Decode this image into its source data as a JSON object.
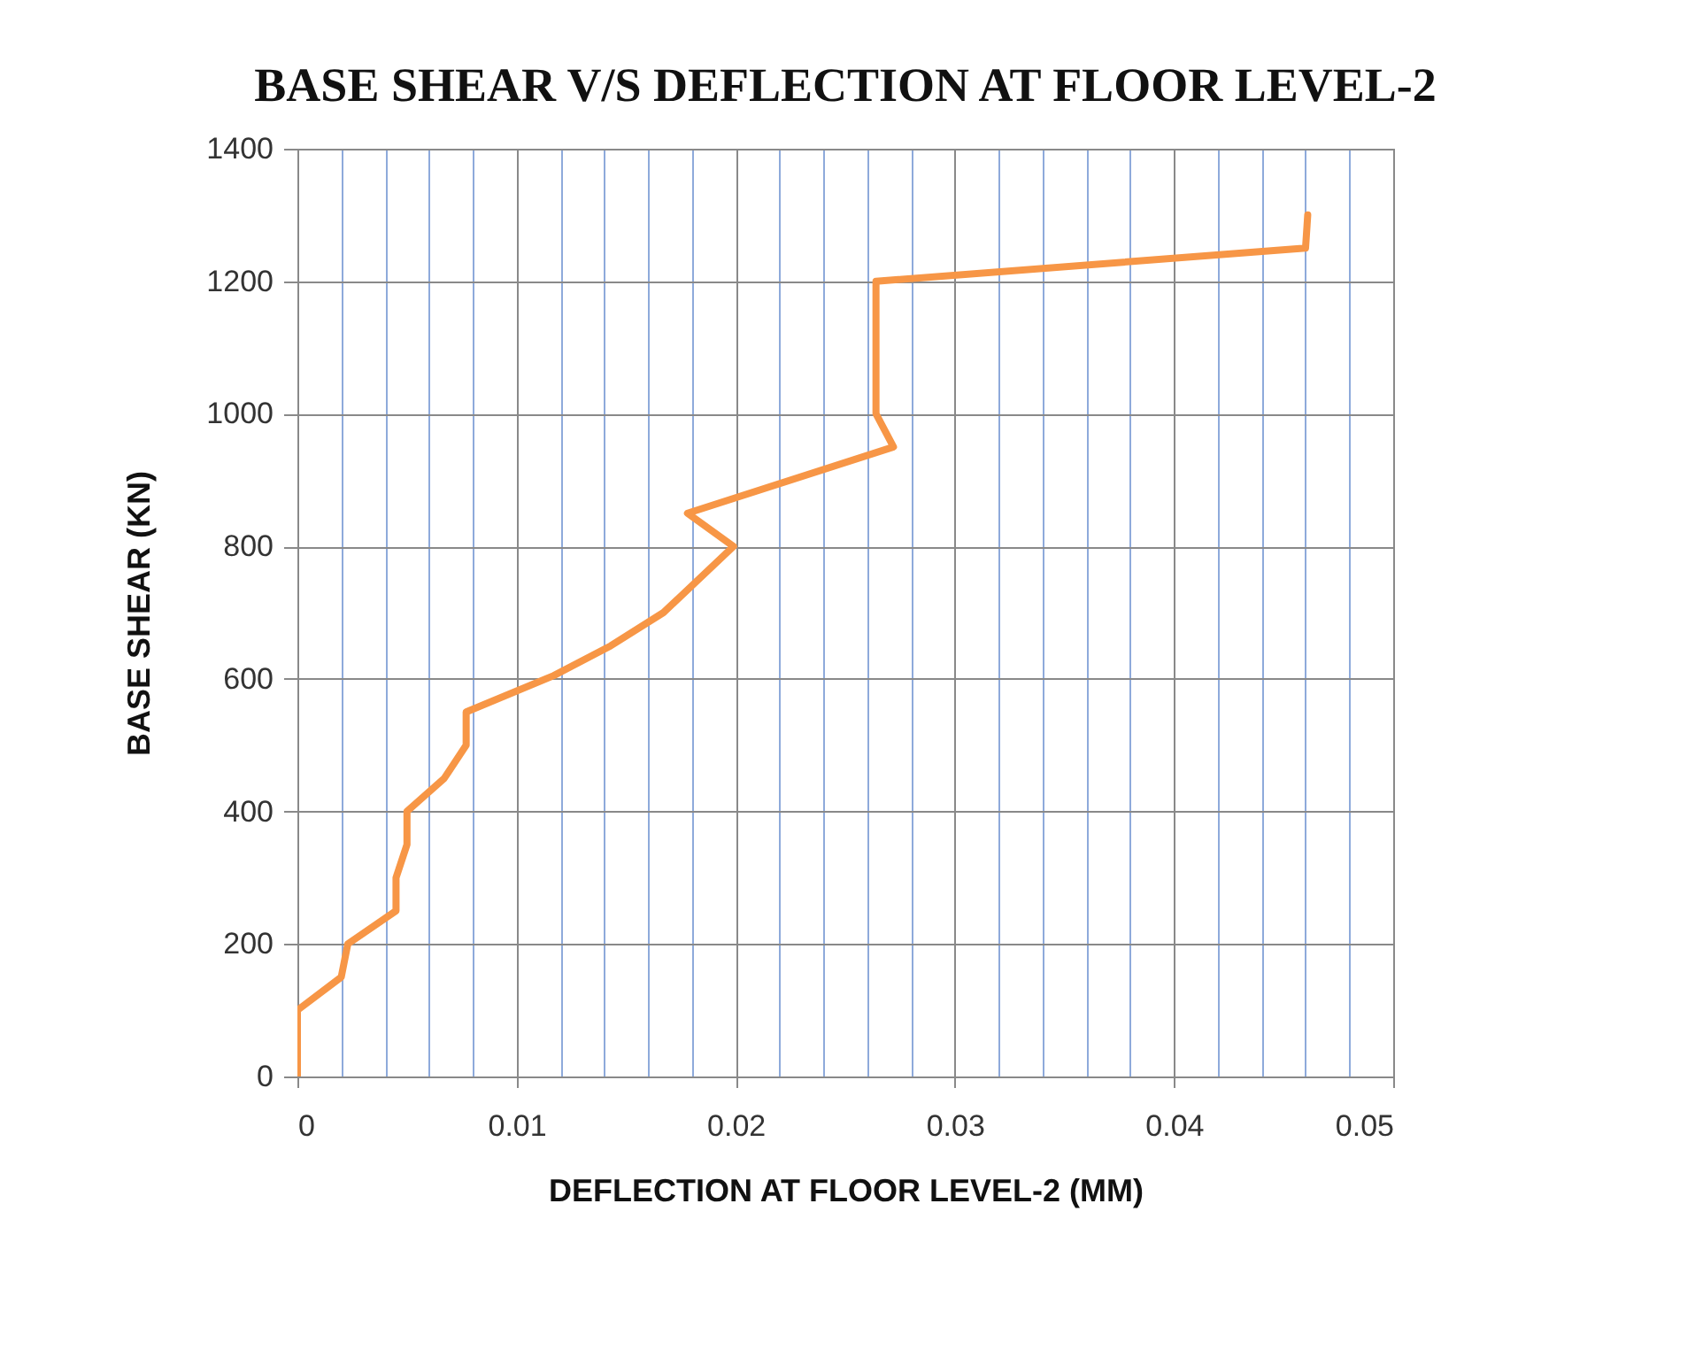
{
  "chart_data": {
    "type": "line",
    "title": "BASE SHEAR V/S DEFLECTION AT FLOOR LEVEL-2",
    "xlabel": "DEFLECTION AT FLOOR LEVEL-2 (MM)",
    "ylabel": "BASE SHEAR (KN)",
    "x": [
      0,
      0,
      0.002,
      0.0023,
      0.0045,
      0.0045,
      0.005,
      0.005,
      0.0067,
      0.0077,
      0.0077,
      0.0117,
      0.0143,
      0.0167,
      0.0199,
      0.0178,
      0.0272,
      0.0264,
      0.0264,
      0.046,
      0.0461
    ],
    "series": [
      {
        "color": "#f79646",
        "values": [
          0,
          100,
          150,
          200,
          250,
          300,
          350,
          400,
          450,
          500,
          550,
          605,
          650,
          700,
          800,
          850,
          950,
          1000,
          1200,
          1250,
          1300
        ]
      }
    ],
    "xlim": [
      0,
      0.05
    ],
    "xticks": [
      0,
      {
        "value": 0.002,
        "label": null
      },
      {
        "value": 0.004,
        "label": null
      },
      {
        "value": 0.006,
        "label": null
      },
      {
        "value": 0.008,
        "label": null
      },
      0.01,
      {
        "value": 0.012,
        "label": null
      },
      {
        "value": 0.014,
        "label": null
      },
      {
        "value": 0.016,
        "label": null
      },
      {
        "value": 0.018,
        "label": null
      },
      0.02,
      {
        "value": 0.022,
        "label": null
      },
      {
        "value": 0.024,
        "label": null
      },
      {
        "value": 0.026,
        "label": null
      },
      {
        "value": 0.028,
        "label": null
      },
      0.03,
      {
        "value": 0.032,
        "label": null
      },
      {
        "value": 0.034,
        "label": null
      },
      {
        "value": 0.036,
        "label": null
      },
      {
        "value": 0.038,
        "label": null
      },
      0.04,
      {
        "value": 0.042,
        "label": null
      },
      {
        "value": 0.044,
        "label": null
      },
      {
        "value": 0.046,
        "label": null
      },
      {
        "value": 0.048,
        "label": null
      },
      0.05
    ],
    "ylim": [
      0,
      1400
    ],
    "yticks": [
      0,
      200,
      400,
      600,
      800,
      1000,
      1200,
      1400
    ],
    "grid": true,
    "marker": "none",
    "line_style": "solid"
  }
}
